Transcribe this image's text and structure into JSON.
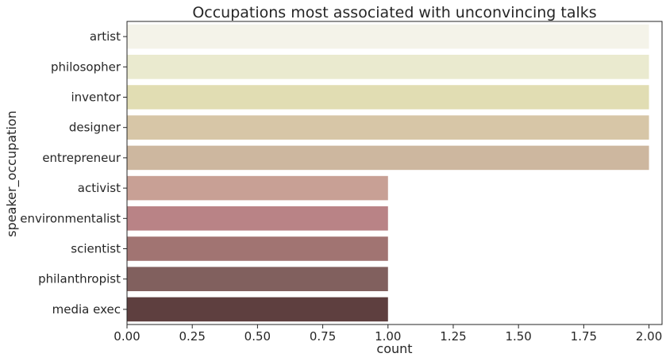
{
  "chart_data": {
    "type": "bar",
    "orientation": "horizontal",
    "title": "Occupations most associated with unconvincing talks",
    "xlabel": "count",
    "ylabel": "speaker_occupation",
    "categories": [
      "artist",
      "philosopher",
      "inventor",
      "designer",
      "entrepreneur",
      "activist",
      "environmentalist",
      "scientist",
      "philanthropist",
      "media exec"
    ],
    "values": [
      2,
      2,
      2,
      2,
      2,
      1,
      1,
      1,
      1,
      1
    ],
    "colors": [
      "#f4f3e9",
      "#eaeacf",
      "#e1ddb3",
      "#d7c6a7",
      "#cdb79f",
      "#c8a095",
      "#b98386",
      "#a17472",
      "#81605e",
      "#5e3f3f"
    ],
    "xlim": [
      0,
      2.05
    ],
    "xticks": [
      "0.00",
      "0.25",
      "0.50",
      "0.75",
      "1.00",
      "1.25",
      "1.50",
      "1.75",
      "2.00"
    ],
    "grid": false,
    "legend": "none"
  }
}
